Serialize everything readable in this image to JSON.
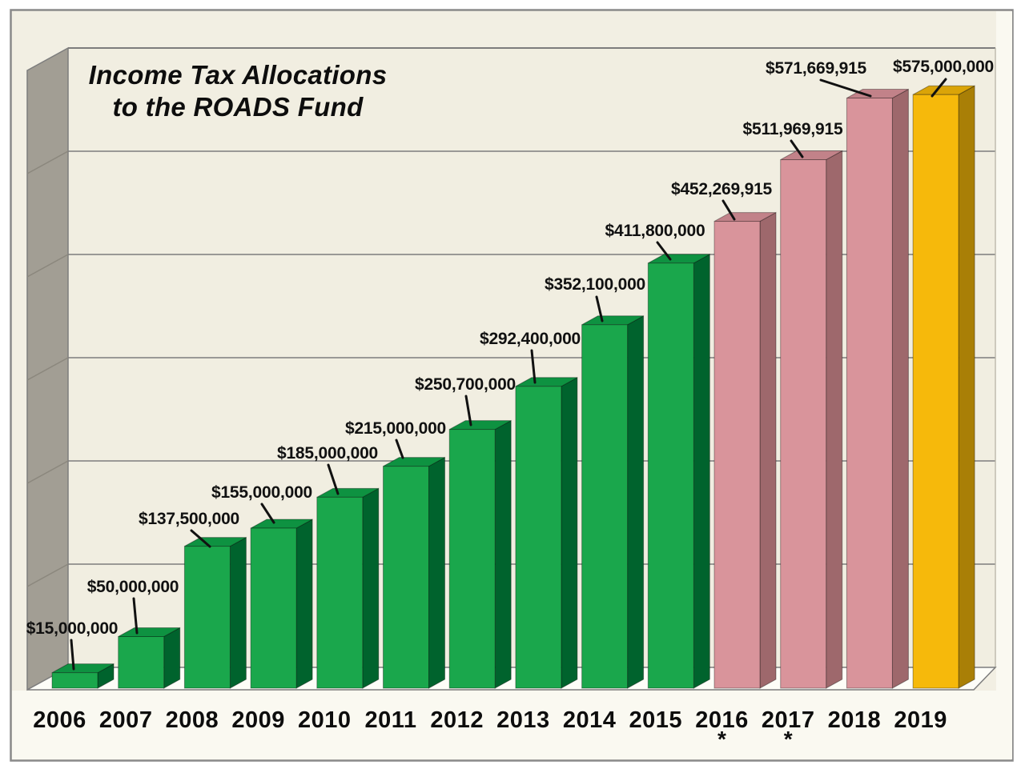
{
  "title": {
    "line1": "Income Tax Allocations",
    "line2": "to the ROADS Fund"
  },
  "chart_data": {
    "type": "bar",
    "projection": "3d",
    "title": "Income Tax Allocations to the ROADS Fund",
    "xlabel": "",
    "ylabel": "",
    "ylim": [
      0,
      600000000
    ],
    "gridline_interval": 100000000,
    "grid": "horizontal",
    "legend_position": "none",
    "categories": [
      "2006",
      "2007",
      "2008",
      "2009",
      "2010",
      "2011",
      "2012",
      "2013",
      "2014",
      "2015",
      "2016",
      "2017",
      "2018",
      "2019"
    ],
    "values": [
      15000000,
      50000000,
      137500000,
      155000000,
      185000000,
      215000000,
      250700000,
      292400000,
      352100000,
      411800000,
      452269915,
      511969915,
      571669915,
      575000000
    ],
    "labels": [
      "$15,000,000",
      "$50,000,000",
      "$137,500,000",
      "$155,000,000",
      "$185,000,000",
      "$215,000,000",
      "$250,700,000",
      "$292,400,000",
      "$352,100,000",
      "$411,800,000",
      "$452,269,915",
      "$511,969,915",
      "$571,669,915",
      "$575,000,000"
    ],
    "bar_colors": [
      "green",
      "green",
      "green",
      "green",
      "green",
      "green",
      "green",
      "green",
      "green",
      "green",
      "pink",
      "pink",
      "pink",
      "gold"
    ],
    "asterisk": "*",
    "asterisk_years": [
      "2016",
      "2017"
    ],
    "colors": {
      "green_front": "#1AA74C",
      "green_top": "#0E9241",
      "green_side": "#00632D",
      "pink_front": "#D9949B",
      "pink_top": "#C28289",
      "pink_side": "#9E686C",
      "gold_front": "#F6B90B",
      "gold_top": "#DAA408",
      "gold_side": "#A97F06",
      "wall": "#A29E94",
      "background": "#F2EFE3",
      "floor": "#FDFDF8",
      "gridline": "#7D7D7D",
      "label_text": "#111111"
    }
  }
}
